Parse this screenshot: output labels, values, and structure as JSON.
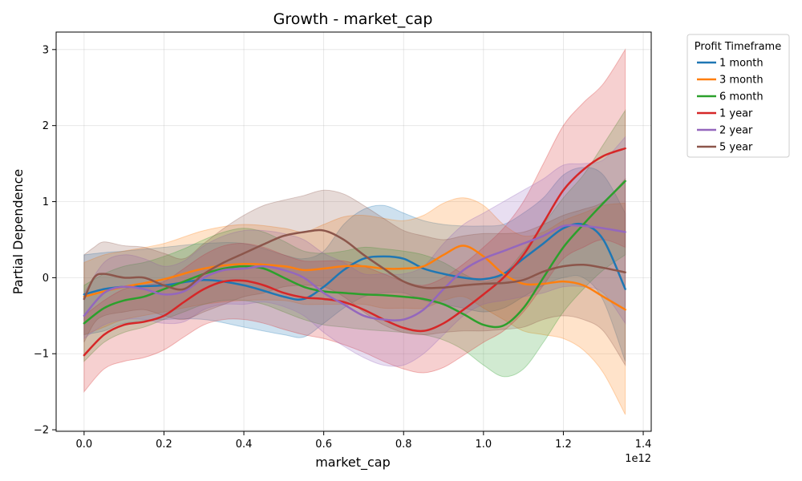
{
  "chart_data": {
    "type": "line",
    "title": "Growth - market_cap",
    "xlabel": "market_cap",
    "ylabel": "Partial Dependence",
    "x_offset_label": "1e12",
    "xlim": [
      -0.07,
      1.42
    ],
    "ylim": [
      -2.02,
      3.23
    ],
    "xticks": [
      0.0,
      0.2,
      0.4,
      0.6,
      0.8,
      1.0,
      1.2,
      1.4
    ],
    "xtick_labels": [
      "0.0",
      "0.2",
      "0.4",
      "0.6",
      "0.8",
      "1.0",
      "1.2",
      "1.4"
    ],
    "yticks": [
      -2,
      -1,
      0,
      1,
      2,
      3
    ],
    "ytick_labels": [
      "−2",
      "−1",
      "0",
      "1",
      "2",
      "3"
    ],
    "grid": true,
    "legend_title": "Profit Timeframe",
    "legend_position": "outside-top-right",
    "band_alpha": 0.22,
    "series": [
      {
        "name": "1 month",
        "color": "#1f77b4",
        "x": [
          0.0,
          0.05,
          0.1,
          0.2,
          0.3,
          0.4,
          0.5,
          0.55,
          0.6,
          0.65,
          0.7,
          0.75,
          0.8,
          0.85,
          0.9,
          0.95,
          1.0,
          1.05,
          1.1,
          1.15,
          1.2,
          1.25,
          1.3,
          1.355
        ],
        "y": [
          -0.22,
          -0.15,
          -0.12,
          -0.1,
          -0.03,
          -0.1,
          -0.25,
          -0.28,
          -0.12,
          0.1,
          0.25,
          0.28,
          0.25,
          0.12,
          0.05,
          0.0,
          -0.02,
          0.05,
          0.25,
          0.45,
          0.65,
          0.7,
          0.5,
          -0.15
        ],
        "lower": [
          -0.75,
          -0.7,
          -0.6,
          -0.55,
          -0.55,
          -0.65,
          -0.75,
          -0.78,
          -0.6,
          -0.4,
          -0.25,
          -0.2,
          -0.2,
          -0.3,
          -0.35,
          -0.4,
          -0.45,
          -0.4,
          -0.25,
          -0.1,
          0.0,
          0.0,
          -0.3,
          -1.1
        ],
        "upper": [
          0.3,
          0.33,
          0.35,
          0.4,
          0.45,
          0.45,
          0.3,
          0.25,
          0.35,
          0.7,
          0.9,
          0.95,
          0.85,
          0.75,
          0.7,
          0.68,
          0.68,
          0.7,
          0.85,
          1.05,
          1.35,
          1.45,
          1.35,
          0.85
        ]
      },
      {
        "name": "3 month",
        "color": "#ff7f0e",
        "x": [
          0.0,
          0.05,
          0.1,
          0.2,
          0.3,
          0.4,
          0.5,
          0.55,
          0.6,
          0.65,
          0.7,
          0.75,
          0.8,
          0.85,
          0.9,
          0.95,
          1.0,
          1.05,
          1.1,
          1.15,
          1.2,
          1.25,
          1.3,
          1.355
        ],
        "y": [
          -0.25,
          -0.18,
          -0.12,
          -0.02,
          0.12,
          0.18,
          0.15,
          0.1,
          0.12,
          0.15,
          0.15,
          0.12,
          0.12,
          0.15,
          0.3,
          0.42,
          0.28,
          0.05,
          -0.08,
          -0.08,
          -0.05,
          -0.1,
          -0.25,
          -0.42
        ],
        "lower": [
          -0.75,
          -0.65,
          -0.55,
          -0.45,
          -0.35,
          -0.3,
          -0.3,
          -0.35,
          -0.35,
          -0.35,
          -0.35,
          -0.4,
          -0.4,
          -0.4,
          -0.3,
          -0.25,
          -0.4,
          -0.55,
          -0.7,
          -0.75,
          -0.8,
          -0.95,
          -1.25,
          -1.8
        ],
        "upper": [
          0.2,
          0.3,
          0.35,
          0.45,
          0.62,
          0.7,
          0.65,
          0.6,
          0.7,
          0.8,
          0.82,
          0.78,
          0.75,
          0.82,
          0.98,
          1.05,
          0.95,
          0.7,
          0.55,
          0.6,
          0.75,
          0.85,
          0.95,
          0.98
        ]
      },
      {
        "name": "6 month",
        "color": "#2ca02c",
        "x": [
          0.0,
          0.05,
          0.1,
          0.15,
          0.2,
          0.25,
          0.3,
          0.35,
          0.4,
          0.45,
          0.5,
          0.55,
          0.6,
          0.65,
          0.7,
          0.75,
          0.8,
          0.85,
          0.9,
          0.95,
          1.0,
          1.05,
          1.1,
          1.15,
          1.2,
          1.25,
          1.3,
          1.355
        ],
        "y": [
          -0.6,
          -0.4,
          -0.3,
          -0.25,
          -0.15,
          -0.05,
          0.05,
          0.12,
          0.15,
          0.12,
          0.0,
          -0.12,
          -0.18,
          -0.2,
          -0.22,
          -0.23,
          -0.25,
          -0.28,
          -0.35,
          -0.48,
          -0.62,
          -0.63,
          -0.4,
          0.0,
          0.4,
          0.7,
          0.98,
          1.27
        ],
        "lower": [
          -1.1,
          -0.85,
          -0.72,
          -0.65,
          -0.55,
          -0.45,
          -0.35,
          -0.3,
          -0.3,
          -0.35,
          -0.45,
          -0.55,
          -0.62,
          -0.65,
          -0.68,
          -0.7,
          -0.72,
          -0.75,
          -0.82,
          -0.95,
          -1.15,
          -1.3,
          -1.2,
          -0.85,
          -0.45,
          -0.15,
          0.1,
          0.3
        ],
        "upper": [
          -0.1,
          0.05,
          0.15,
          0.2,
          0.28,
          0.38,
          0.5,
          0.6,
          0.65,
          0.6,
          0.48,
          0.35,
          0.32,
          0.35,
          0.4,
          0.38,
          0.35,
          0.3,
          0.2,
          0.05,
          -0.05,
          0.05,
          0.35,
          0.7,
          1.05,
          1.35,
          1.75,
          2.2
        ]
      },
      {
        "name": "1 year",
        "color": "#d62728",
        "x": [
          0.0,
          0.05,
          0.1,
          0.15,
          0.2,
          0.25,
          0.3,
          0.35,
          0.4,
          0.45,
          0.5,
          0.55,
          0.6,
          0.65,
          0.7,
          0.75,
          0.8,
          0.85,
          0.9,
          0.95,
          1.0,
          1.05,
          1.1,
          1.15,
          1.2,
          1.25,
          1.3,
          1.355
        ],
        "y": [
          -1.02,
          -0.75,
          -0.62,
          -0.58,
          -0.5,
          -0.32,
          -0.15,
          -0.05,
          -0.04,
          -0.1,
          -0.2,
          -0.26,
          -0.28,
          -0.32,
          -0.42,
          -0.55,
          -0.66,
          -0.7,
          -0.6,
          -0.42,
          -0.22,
          0.0,
          0.3,
          0.72,
          1.15,
          1.42,
          1.6,
          1.7
        ],
        "lower": [
          -1.5,
          -1.2,
          -1.1,
          -1.05,
          -0.95,
          -0.78,
          -0.62,
          -0.55,
          -0.55,
          -0.6,
          -0.68,
          -0.75,
          -0.8,
          -0.88,
          -0.98,
          -1.1,
          -1.2,
          -1.25,
          -1.18,
          -1.02,
          -0.85,
          -0.7,
          -0.45,
          -0.1,
          0.25,
          0.4,
          0.5,
          0.4
        ],
        "upper": [
          -0.5,
          -0.3,
          -0.15,
          -0.1,
          -0.05,
          0.12,
          0.3,
          0.42,
          0.45,
          0.4,
          0.3,
          0.22,
          0.22,
          0.22,
          0.15,
          0.05,
          -0.05,
          -0.1,
          0.0,
          0.18,
          0.4,
          0.65,
          1.0,
          1.5,
          2.0,
          2.3,
          2.55,
          3.0
        ]
      },
      {
        "name": "2 year",
        "color": "#9467bd",
        "x": [
          0.0,
          0.05,
          0.1,
          0.15,
          0.2,
          0.25,
          0.3,
          0.35,
          0.4,
          0.45,
          0.5,
          0.55,
          0.6,
          0.65,
          0.7,
          0.75,
          0.8,
          0.85,
          0.9,
          0.95,
          1.0,
          1.05,
          1.1,
          1.15,
          1.2,
          1.25,
          1.3,
          1.355
        ],
        "y": [
          -0.5,
          -0.2,
          -0.12,
          -0.15,
          -0.22,
          -0.18,
          0.0,
          0.1,
          0.12,
          0.15,
          0.1,
          0.0,
          -0.2,
          -0.35,
          -0.5,
          -0.55,
          -0.55,
          -0.42,
          -0.15,
          0.1,
          0.25,
          0.35,
          0.45,
          0.55,
          0.68,
          0.68,
          0.65,
          0.6
        ],
        "lower": [
          -0.8,
          -0.62,
          -0.55,
          -0.55,
          -0.6,
          -0.58,
          -0.42,
          -0.35,
          -0.35,
          -0.32,
          -0.38,
          -0.5,
          -0.72,
          -0.9,
          -1.05,
          -1.15,
          -1.15,
          -1.0,
          -0.75,
          -0.5,
          -0.35,
          -0.3,
          -0.25,
          -0.2,
          -0.12,
          -0.12,
          -0.2,
          -0.6
        ],
        "upper": [
          -0.2,
          0.2,
          0.3,
          0.25,
          0.15,
          0.22,
          0.42,
          0.55,
          0.62,
          0.62,
          0.58,
          0.5,
          0.32,
          0.2,
          0.05,
          0.05,
          0.05,
          0.15,
          0.45,
          0.7,
          0.85,
          1.0,
          1.15,
          1.3,
          1.48,
          1.5,
          1.55,
          1.85
        ]
      },
      {
        "name": "5 year",
        "color": "#8c564b",
        "x": [
          0.0,
          0.025,
          0.05,
          0.1,
          0.15,
          0.2,
          0.25,
          0.3,
          0.35,
          0.4,
          0.45,
          0.5,
          0.55,
          0.6,
          0.65,
          0.7,
          0.75,
          0.8,
          0.85,
          0.9,
          0.95,
          1.0,
          1.05,
          1.1,
          1.15,
          1.2,
          1.25,
          1.3,
          1.355
        ],
        "y": [
          -0.28,
          0.0,
          0.05,
          0.0,
          0.0,
          -0.1,
          -0.15,
          0.05,
          0.2,
          0.32,
          0.44,
          0.55,
          0.6,
          0.62,
          0.5,
          0.3,
          0.12,
          -0.05,
          -0.13,
          -0.13,
          -0.1,
          -0.08,
          -0.07,
          -0.03,
          0.08,
          0.15,
          0.17,
          0.13,
          0.07
        ],
        "lower": [
          -0.85,
          -0.6,
          -0.5,
          -0.45,
          -0.42,
          -0.5,
          -0.55,
          -0.45,
          -0.35,
          -0.25,
          -0.2,
          -0.12,
          -0.1,
          -0.12,
          -0.25,
          -0.45,
          -0.62,
          -0.72,
          -0.75,
          -0.72,
          -0.7,
          -0.7,
          -0.68,
          -0.65,
          -0.55,
          -0.5,
          -0.55,
          -0.7,
          -1.15
        ],
        "upper": [
          0.3,
          0.4,
          0.47,
          0.42,
          0.4,
          0.32,
          0.25,
          0.45,
          0.65,
          0.82,
          0.95,
          1.02,
          1.08,
          1.15,
          1.1,
          0.95,
          0.78,
          0.62,
          0.55,
          0.5,
          0.55,
          0.58,
          0.58,
          0.6,
          0.7,
          0.82,
          0.9,
          1.0,
          1.3
        ]
      }
    ]
  }
}
